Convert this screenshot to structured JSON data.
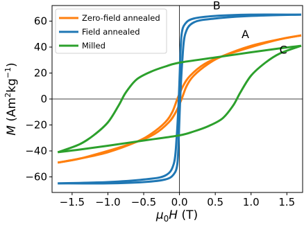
{
  "chart_data": {
    "type": "line",
    "xlabel_symbol": "μ",
    "xlabel_sub": "0",
    "xlabel_var": "H",
    "xlabel_unit": " (T)",
    "ylabel_var": "M",
    "ylabel_unit_pre": " (Am",
    "ylabel_sup1": "2",
    "ylabel_mid": "kg",
    "ylabel_sup2": "−1",
    "ylabel_unit_post": ")",
    "xlim": [
      -1.78,
      1.72
    ],
    "ylim": [
      -72,
      72
    ],
    "xticks": [
      -1.5,
      -1.0,
      -0.5,
      0.0,
      0.5,
      1.0,
      1.5
    ],
    "xtick_labels": [
      "−1.5",
      "−1.0",
      "−0.5",
      "0.0",
      "0.5",
      "1.0",
      "1.5"
    ],
    "yticks": [
      -60,
      -40,
      -20,
      0,
      20,
      40,
      60
    ],
    "ytick_labels": [
      "−60",
      "−40",
      "−20",
      "0",
      "20",
      "40",
      "60"
    ],
    "grid": false,
    "legend_position": "top-left",
    "series": [
      {
        "name": "Zero-field annealed",
        "color": "#ff7f0e",
        "loop_top": [
          [
            -1.7,
            -49
          ],
          [
            -1.4,
            -46
          ],
          [
            -1.0,
            -41
          ],
          [
            -0.6,
            -33
          ],
          [
            -0.4,
            -27
          ],
          [
            -0.2,
            -18
          ],
          [
            -0.1,
            -10
          ],
          [
            -0.03,
            0
          ],
          [
            0.05,
            10
          ],
          [
            0.15,
            18
          ],
          [
            0.35,
            27
          ],
          [
            0.6,
            33
          ],
          [
            1.0,
            40
          ],
          [
            1.4,
            46
          ],
          [
            1.7,
            49
          ]
        ],
        "loop_bottom": [
          [
            -1.7,
            -49
          ],
          [
            -1.4,
            -46
          ],
          [
            -1.0,
            -40
          ],
          [
            -0.6,
            -33
          ],
          [
            -0.35,
            -27
          ],
          [
            -0.15,
            -18
          ],
          [
            -0.05,
            -10
          ],
          [
            0.03,
            0
          ],
          [
            0.1,
            10
          ],
          [
            0.2,
            18
          ],
          [
            0.4,
            27
          ],
          [
            0.6,
            33
          ],
          [
            1.0,
            41
          ],
          [
            1.4,
            46
          ],
          [
            1.7,
            49
          ]
        ]
      },
      {
        "name": "Field annealed",
        "color": "#1f77b4",
        "loop_top": [
          [
            -1.7,
            -65
          ],
          [
            -1.0,
            -64
          ],
          [
            -0.5,
            -62
          ],
          [
            -0.2,
            -59
          ],
          [
            -0.08,
            -50
          ],
          [
            -0.04,
            -30
          ],
          [
            -0.01,
            0
          ],
          [
            0.01,
            30
          ],
          [
            0.03,
            50
          ],
          [
            0.08,
            58
          ],
          [
            0.2,
            62
          ],
          [
            0.5,
            64
          ],
          [
            1.0,
            65
          ],
          [
            1.7,
            65
          ]
        ],
        "loop_bottom": [
          [
            -1.7,
            -65
          ],
          [
            -1.0,
            -65
          ],
          [
            -0.5,
            -64
          ],
          [
            -0.2,
            -62
          ],
          [
            -0.08,
            -58
          ],
          [
            -0.03,
            -50
          ],
          [
            -0.01,
            -30
          ],
          [
            0.01,
            0
          ],
          [
            0.04,
            30
          ],
          [
            0.08,
            50
          ],
          [
            0.2,
            59
          ],
          [
            0.5,
            62
          ],
          [
            1.0,
            64
          ],
          [
            1.7,
            65
          ]
        ]
      },
      {
        "name": "Milled",
        "color": "#2ca02c",
        "loop_top": [
          [
            -1.7,
            -41
          ],
          [
            -1.4,
            -35
          ],
          [
            -1.2,
            -28
          ],
          [
            -1.0,
            -18
          ],
          [
            -0.85,
            -5
          ],
          [
            -0.75,
            5
          ],
          [
            -0.6,
            15
          ],
          [
            -0.4,
            21
          ],
          [
            -0.2,
            25
          ],
          [
            0.0,
            28
          ],
          [
            0.5,
            32
          ],
          [
            1.0,
            36
          ],
          [
            1.4,
            39
          ],
          [
            1.7,
            41
          ]
        ],
        "loop_bottom": [
          [
            -1.7,
            -41
          ],
          [
            -1.4,
            -39
          ],
          [
            -1.0,
            -36
          ],
          [
            -0.5,
            -32
          ],
          [
            0.0,
            -28
          ],
          [
            0.2,
            -25
          ],
          [
            0.4,
            -21
          ],
          [
            0.6,
            -15
          ],
          [
            0.75,
            -5
          ],
          [
            0.85,
            5
          ],
          [
            1.0,
            18
          ],
          [
            1.2,
            28
          ],
          [
            1.4,
            35
          ],
          [
            1.7,
            41
          ]
        ]
      }
    ],
    "annotations": [
      {
        "text": "A",
        "x": 0.92,
        "y": 47
      },
      {
        "text": "B",
        "x": 0.52,
        "y": 69
      },
      {
        "text": "C",
        "x": 1.45,
        "y": 35
      }
    ]
  }
}
